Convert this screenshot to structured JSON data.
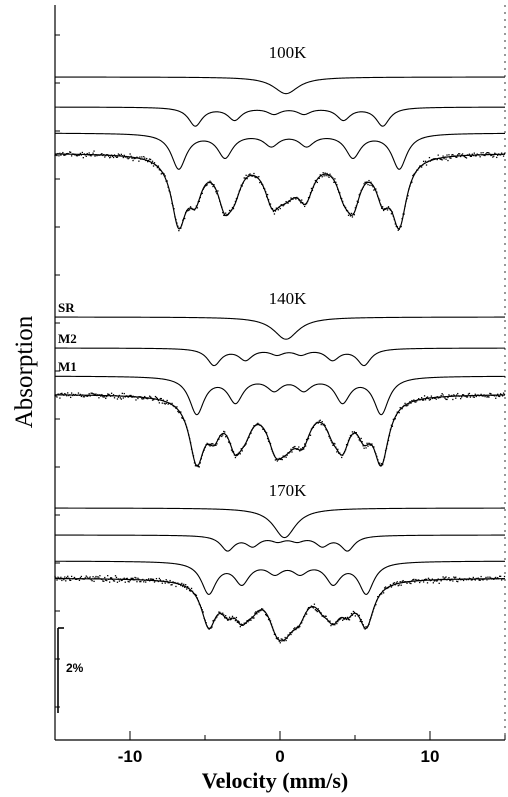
{
  "chart_data": {
    "type": "line",
    "title": "",
    "xlabel": "Velocity (mm/s)",
    "ylabel": "Absorption",
    "xlim": [
      -15,
      15
    ],
    "x_ticks": [
      -10,
      0,
      10
    ],
    "x_tick_labels": [
      "-10",
      "0",
      "10"
    ],
    "scale_bar_label": "2%",
    "grid": false,
    "panels": [
      {
        "temperature": "100K",
        "components": [
          {
            "name": "",
            "type": "singlet",
            "center": 0.4,
            "depth": 0.9,
            "width": 1.0
          },
          {
            "name": "",
            "type": "sextet",
            "center": 0.6,
            "splitting": 12.5,
            "depth": 1.0,
            "width": 0.55
          },
          {
            "name": "",
            "type": "sextet",
            "center": 0.6,
            "splitting": 14.7,
            "depth": 1.9,
            "width": 0.6
          }
        ],
        "data_curve": {
          "baseline_offset": 0.5,
          "depth": 4.1
        }
      },
      {
        "temperature": "140K",
        "components": [
          {
            "name": "SR",
            "type": "singlet",
            "center": 0.4,
            "depth": 1.2,
            "width": 1.0
          },
          {
            "name": "M2",
            "type": "sextet",
            "center": 0.6,
            "splitting": 10.0,
            "depth": 0.9,
            "width": 0.55
          },
          {
            "name": "M1",
            "type": "sextet",
            "center": 0.6,
            "splitting": 12.3,
            "depth": 2.0,
            "width": 0.6
          }
        ],
        "data_curve": {
          "baseline_offset": 0.7,
          "depth": 3.9
        }
      },
      {
        "temperature": "170K",
        "components": [
          {
            "name": "",
            "type": "singlet",
            "center": 0.3,
            "depth": 1.6,
            "width": 0.9
          },
          {
            "name": "",
            "type": "sextet",
            "center": 0.5,
            "splitting": 8.0,
            "depth": 0.8,
            "width": 0.55
          },
          {
            "name": "",
            "type": "sextet",
            "center": 0.5,
            "splitting": 10.5,
            "depth": 1.7,
            "width": 0.6
          }
        ],
        "data_curve": {
          "baseline_offset": 0.6,
          "depth": 3.4
        }
      }
    ]
  }
}
